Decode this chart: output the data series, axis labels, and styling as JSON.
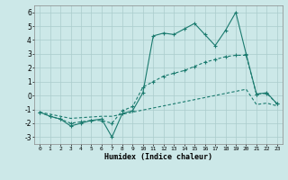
{
  "xlabel": "Humidex (Indice chaleur)",
  "x": [
    0,
    1,
    2,
    3,
    4,
    5,
    6,
    7,
    8,
    9,
    10,
    11,
    12,
    13,
    14,
    15,
    16,
    17,
    18,
    19,
    20,
    21,
    22,
    23
  ],
  "line1": [
    -1.2,
    -1.5,
    -1.7,
    -2.2,
    -2.0,
    -1.8,
    -1.7,
    -3.0,
    -1.3,
    -1.1,
    0.2,
    4.3,
    4.5,
    4.4,
    4.8,
    5.2,
    4.4,
    3.6,
    4.7,
    6.0,
    3.0,
    0.1,
    0.2,
    -0.6
  ],
  "line2": [
    -1.2,
    -1.5,
    -1.7,
    -2.0,
    -1.9,
    -1.8,
    -1.8,
    -2.0,
    -1.1,
    -0.8,
    0.6,
    1.0,
    1.4,
    1.6,
    1.8,
    2.1,
    2.4,
    2.6,
    2.8,
    2.9,
    2.9,
    0.1,
    0.15,
    -0.6
  ],
  "line3": [
    -1.2,
    -1.35,
    -1.5,
    -1.65,
    -1.6,
    -1.55,
    -1.5,
    -1.5,
    -1.35,
    -1.2,
    -1.05,
    -0.9,
    -0.75,
    -0.6,
    -0.45,
    -0.3,
    -0.15,
    0.0,
    0.15,
    0.3,
    0.45,
    -0.65,
    -0.55,
    -0.75
  ],
  "line_color": "#1a7a6e",
  "bg_color": "#cce8e8",
  "grid_color": "#aacccc",
  "ylim": [
    -3.5,
    6.5
  ],
  "xlim": [
    -0.5,
    23.5
  ],
  "yticks": [
    -3,
    -2,
    -1,
    0,
    1,
    2,
    3,
    4,
    5,
    6
  ],
  "xticks": [
    0,
    1,
    2,
    3,
    4,
    5,
    6,
    7,
    8,
    9,
    10,
    11,
    12,
    13,
    14,
    15,
    16,
    17,
    18,
    19,
    20,
    21,
    22,
    23
  ]
}
